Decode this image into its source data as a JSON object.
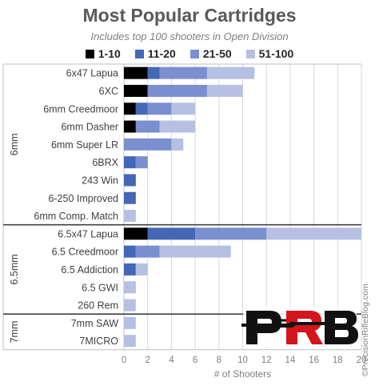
{
  "chart_data": {
    "type": "bar",
    "orientation": "horizontal",
    "stacked": true,
    "title": "Most Popular Cartridges",
    "subtitle": "Includes top 100 shooters in Open Division",
    "xlabel": "# of Shooters",
    "xlim": [
      0,
      20
    ],
    "xticks": [
      "0",
      "2",
      "4",
      "6",
      "8",
      "10",
      "12",
      "14",
      "16",
      "18",
      "20"
    ],
    "grid": true,
    "legend_position": "top",
    "groups": [
      {
        "name": "6mm",
        "categories": [
          "6x47 Lapua",
          "6XC",
          "6mm Creedmoor",
          "6mm Dasher",
          "6mm Super LR",
          "6BRX",
          "243 Win",
          "6-250 Improved",
          "6mm Comp. Match"
        ]
      },
      {
        "name": "6.5mm",
        "categories": [
          "6.5x47 Lapua",
          "6.5 Creedmoor",
          "6.5 Addiction",
          "6.5 GWI",
          "260 Rem"
        ]
      },
      {
        "name": "7mm",
        "categories": [
          "7mm SAW",
          "7MICRO"
        ]
      }
    ],
    "categories": [
      "6x47 Lapua",
      "6XC",
      "6mm Creedmoor",
      "6mm Dasher",
      "6mm Super LR",
      "6BRX",
      "243 Win",
      "6-250 Improved",
      "6mm Comp. Match",
      "6.5x47 Lapua",
      "6.5 Creedmoor",
      "6.5 Addiction",
      "6.5 GWI",
      "260 Rem",
      "7mm SAW",
      "7MICRO"
    ],
    "series": [
      {
        "name": "1-10",
        "color": "#000000",
        "values": [
          2,
          2,
          1,
          1,
          0,
          0,
          0,
          0,
          0,
          2,
          0,
          0,
          0,
          0,
          0,
          0
        ]
      },
      {
        "name": "11-20",
        "color": "#4468b5",
        "values": [
          1,
          0,
          1,
          0,
          0,
          1,
          1,
          1,
          0,
          4,
          1,
          1,
          0,
          0,
          0,
          0
        ]
      },
      {
        "name": "21-50",
        "color": "#7a8fd0",
        "values": [
          4,
          5,
          2,
          2,
          4,
          1,
          0,
          0,
          0,
          6,
          2,
          0,
          0,
          0,
          0,
          0
        ]
      },
      {
        "name": "51-100",
        "color": "#b5c0e3",
        "values": [
          4,
          3,
          2,
          3,
          1,
          0,
          0,
          0,
          1,
          8,
          6,
          1,
          1,
          1,
          1,
          1
        ]
      }
    ]
  },
  "watermark": "©PrecisionRifleBlog.com",
  "logo": {
    "letters": [
      "P",
      "R",
      "B"
    ]
  }
}
